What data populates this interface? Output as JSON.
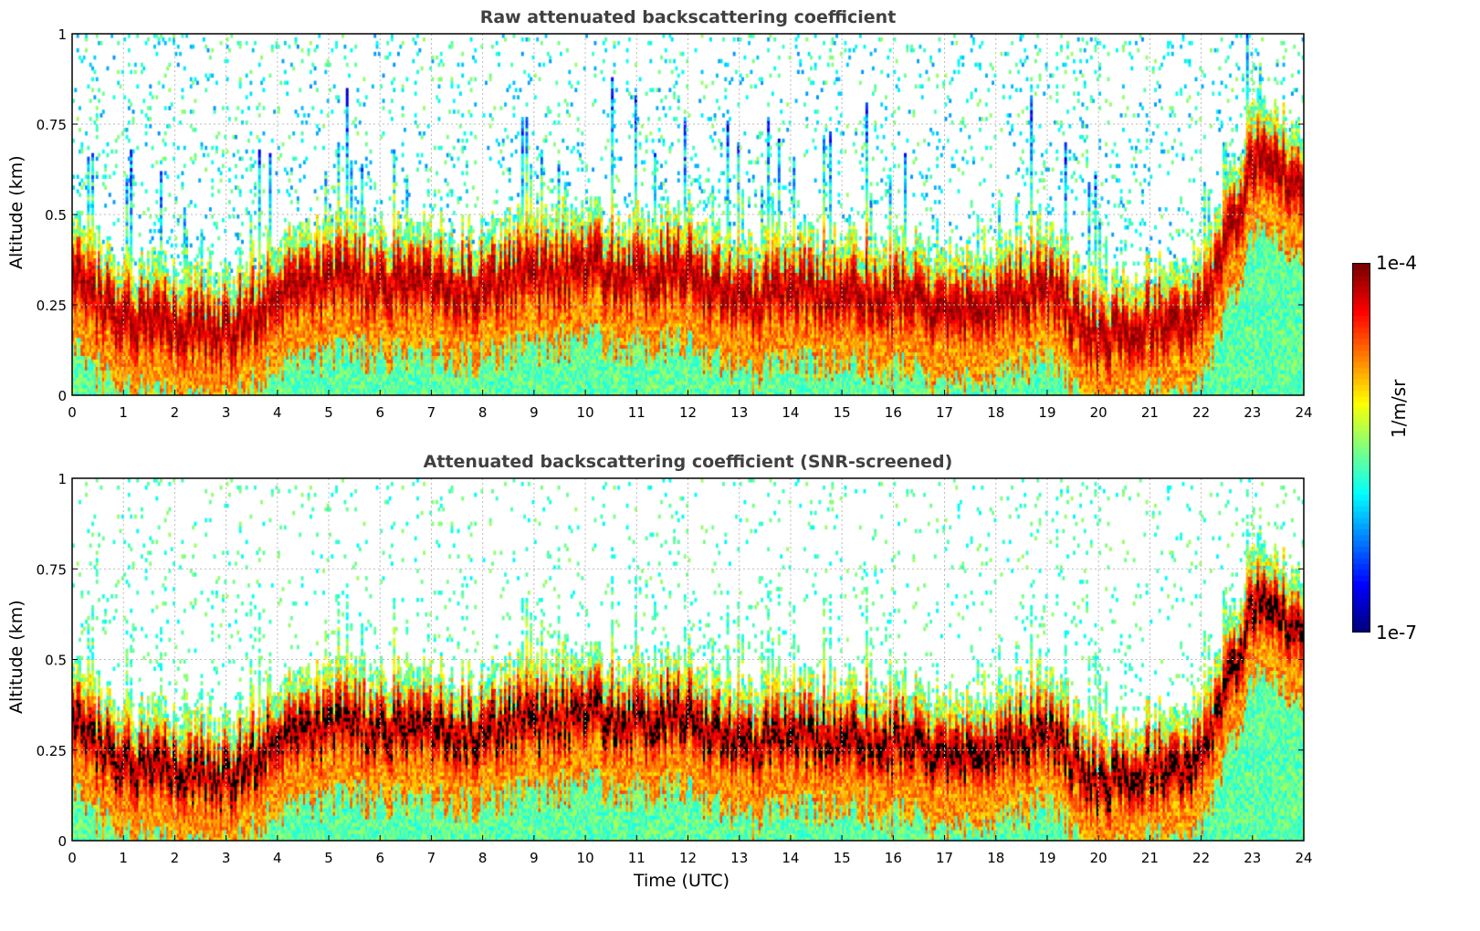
{
  "chart_data": [
    {
      "type": "heatmap",
      "title": "Raw attenuated backscattering coefficient",
      "xlabel": "",
      "ylabel": "Altitude (km)",
      "xlim": [
        0,
        24
      ],
      "ylim": [
        0,
        1
      ],
      "xticks": [
        "0",
        "1",
        "2",
        "3",
        "4",
        "5",
        "6",
        "7",
        "8",
        "9",
        "10",
        "11",
        "12",
        "13",
        "14",
        "15",
        "16",
        "17",
        "18",
        "19",
        "20",
        "21",
        "22",
        "23",
        "24"
      ],
      "yticks": [
        "0",
        "0.25",
        "0.5",
        "0.75",
        "1"
      ],
      "grid": true,
      "screened": false
    },
    {
      "type": "heatmap",
      "title": "Attenuated backscattering coefficient (SNR-screened)",
      "xlabel": "Time (UTC)",
      "ylabel": "Altitude (km)",
      "xlim": [
        0,
        24
      ],
      "ylim": [
        0,
        1
      ],
      "xticks": [
        "0",
        "1",
        "2",
        "3",
        "4",
        "5",
        "6",
        "7",
        "8",
        "9",
        "10",
        "11",
        "12",
        "13",
        "14",
        "15",
        "16",
        "17",
        "18",
        "19",
        "20",
        "21",
        "22",
        "23",
        "24"
      ],
      "yticks": [
        "0",
        "0.25",
        "0.5",
        "0.75",
        "1"
      ],
      "grid": true,
      "screened": true
    }
  ],
  "layer_profile": {
    "time_utc": [
      0,
      1,
      2,
      3,
      4,
      5,
      6,
      7,
      8,
      9,
      10,
      11,
      12,
      13,
      14,
      15,
      16,
      17,
      18,
      19,
      20,
      21,
      22,
      23,
      24
    ],
    "layer_center_km": [
      0.32,
      0.2,
      0.2,
      0.17,
      0.28,
      0.3,
      0.32,
      0.3,
      0.3,
      0.33,
      0.35,
      0.33,
      0.35,
      0.25,
      0.28,
      0.3,
      0.27,
      0.25,
      0.25,
      0.3,
      0.15,
      0.2,
      0.22,
      0.65,
      0.6
    ]
  },
  "colorbar": {
    "label": "1/m/sr",
    "max_label": "1e-4",
    "min_label": "1e-7",
    "log_range": [
      -7,
      -4
    ],
    "colormap": "jet"
  }
}
